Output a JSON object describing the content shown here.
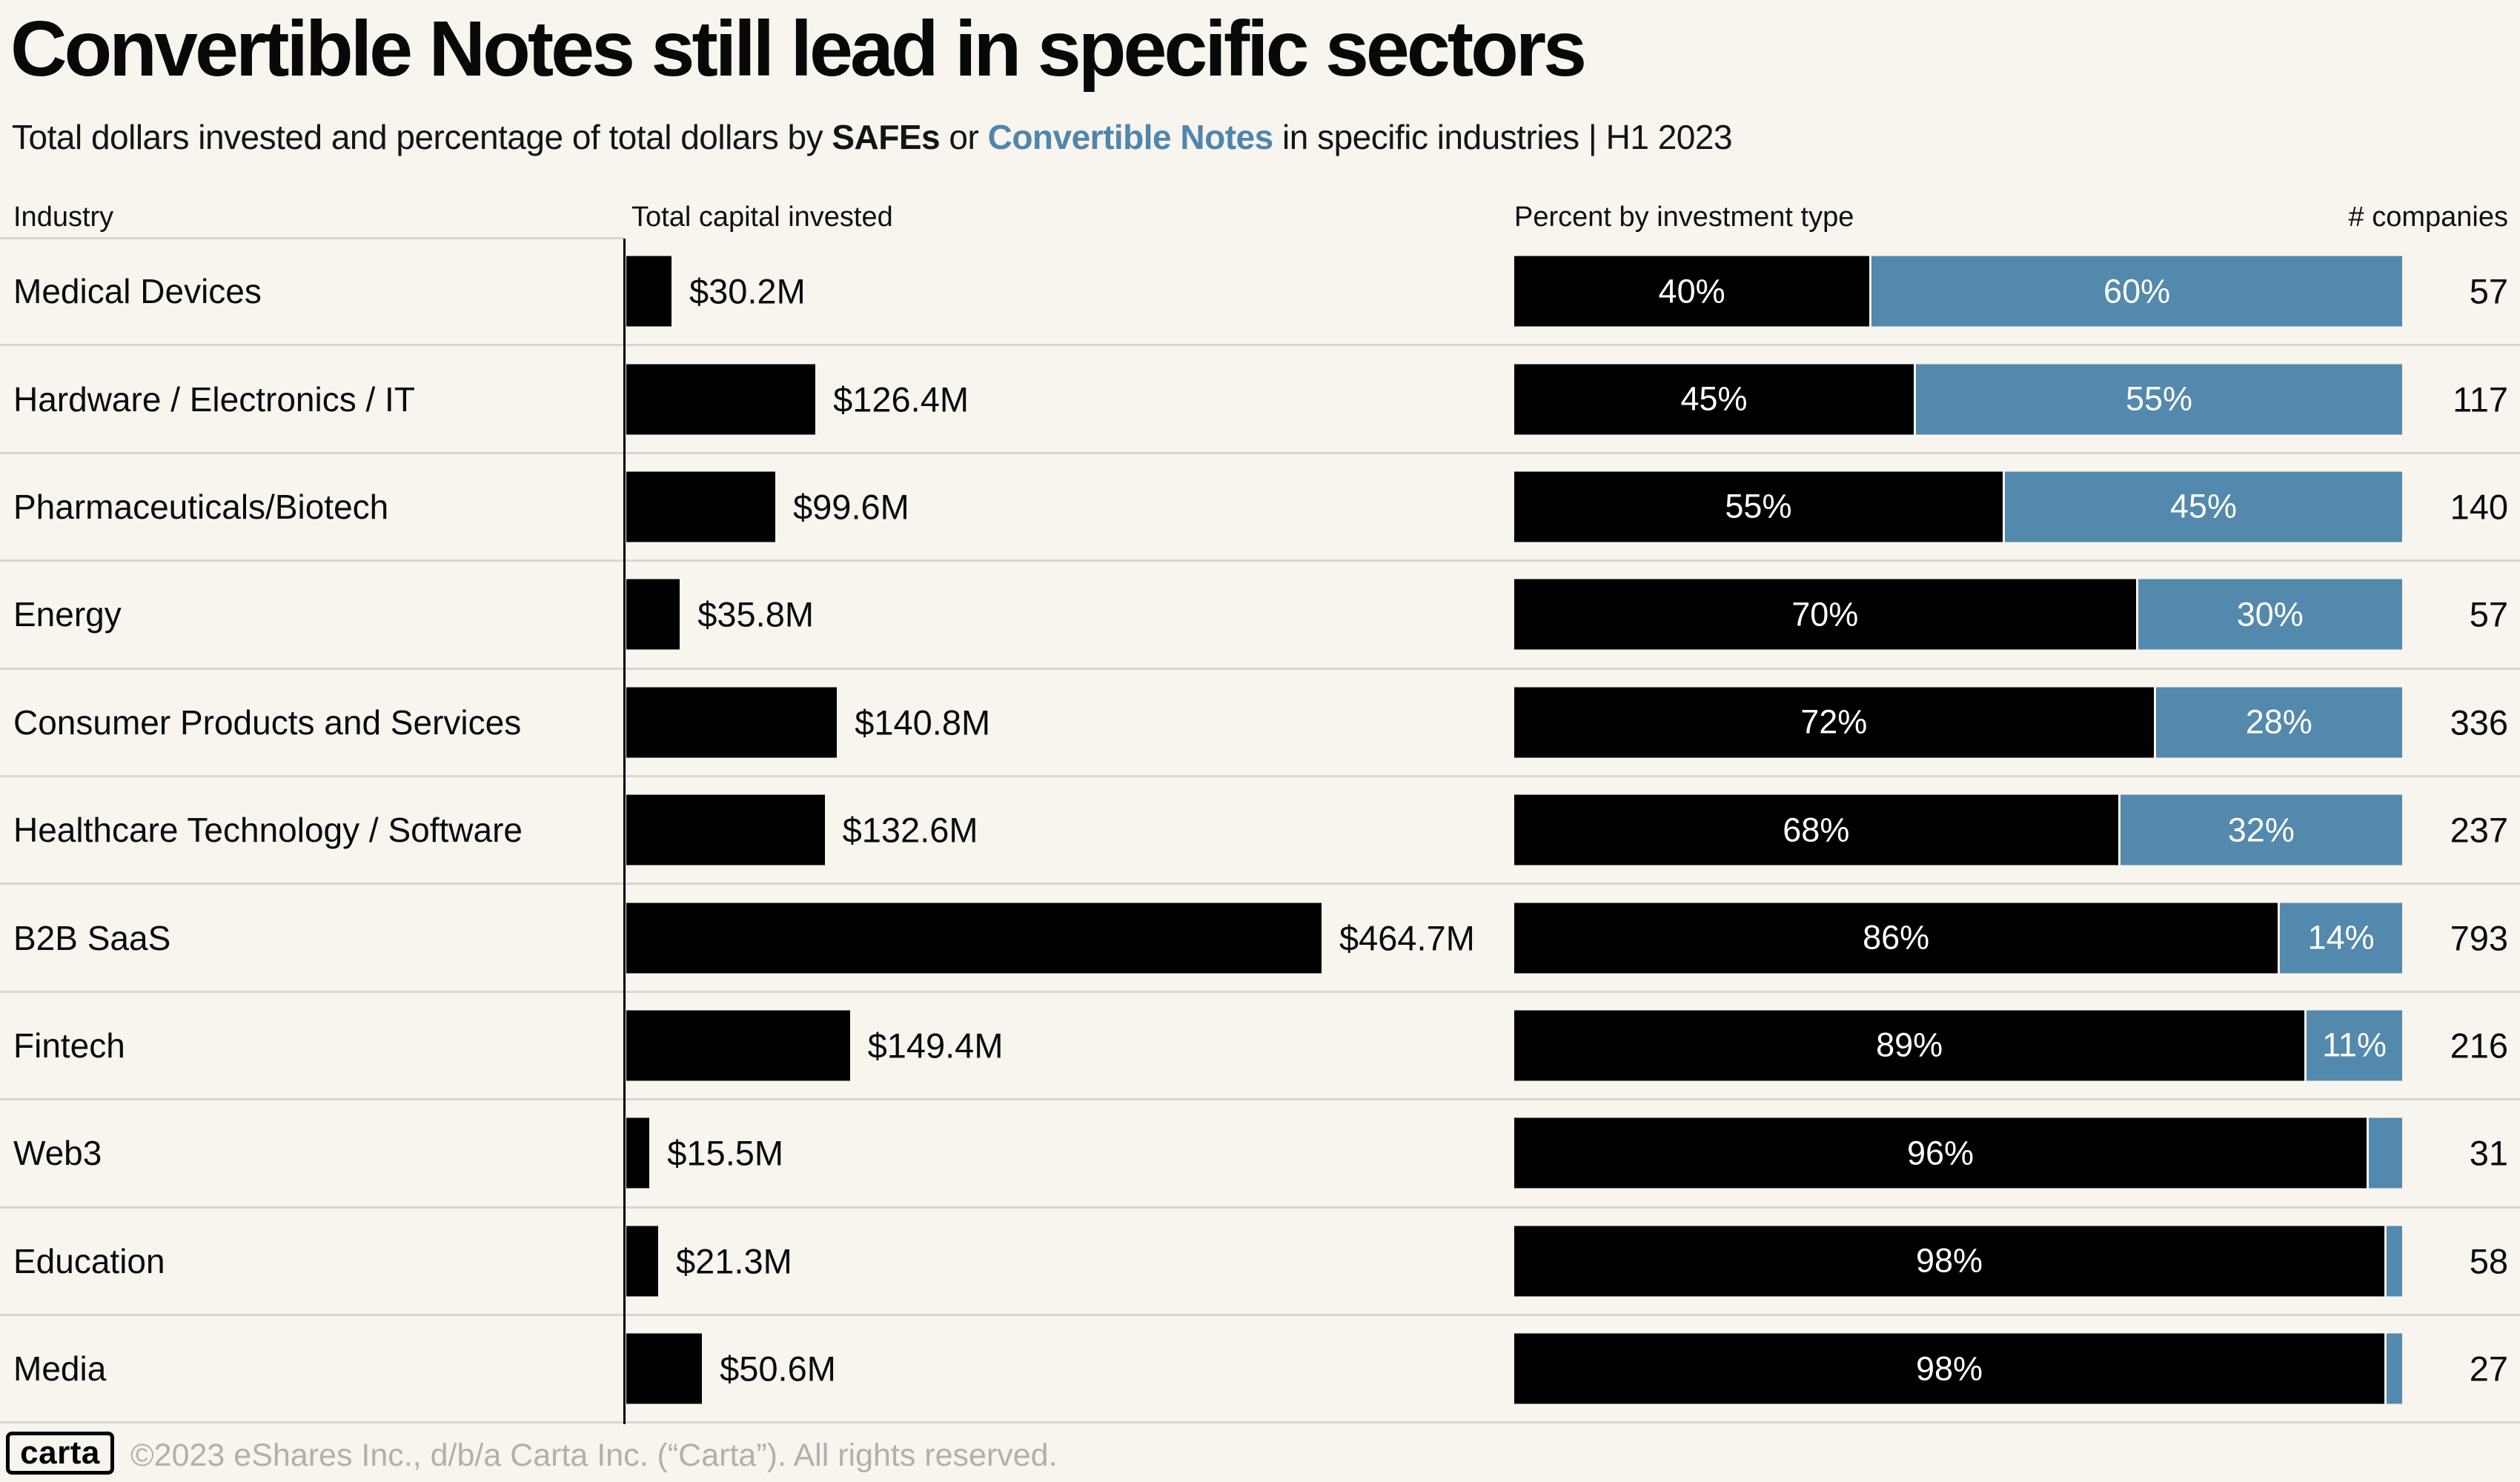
{
  "title": "Convertible Notes still lead in specific sectors",
  "subtitle": {
    "part1": "Total dollars invested and percentage of total dollars by ",
    "safes": "SAFEs",
    "part2": " or ",
    "convertible_notes": "Convertible Notes",
    "part3": " in specific industries | H1 2023"
  },
  "columns": {
    "industry": "Industry",
    "capital": "Total capital invested",
    "percent": "Percent by investment type",
    "companies": "# companies"
  },
  "chart_data": {
    "type": "bar",
    "orientation": "horizontal",
    "title": "Convertible Notes still lead in specific sectors",
    "subtitle": "Total dollars invested and percentage of total dollars by SAFEs or Convertible Notes in specific industries | H1 2023",
    "legend": [
      "SAFEs (black)",
      "Convertible Notes (blue)"
    ],
    "capital_axis_max_m": 464.7,
    "categories": [
      "Medical Devices",
      "Hardware / Electronics / IT",
      "Pharmaceuticals/Biotech",
      "Energy",
      "Consumer Products and Services",
      "Healthcare Technology / Software",
      "B2B SaaS",
      "Fintech",
      "Web3",
      "Education",
      "Media"
    ],
    "series": [
      {
        "name": "Total capital invested ($M)",
        "values": [
          30.2,
          126.4,
          99.6,
          35.8,
          140.8,
          132.6,
          464.7,
          149.4,
          15.5,
          21.3,
          50.6
        ]
      },
      {
        "name": "SAFEs (% of dollars)",
        "values": [
          40,
          45,
          55,
          70,
          72,
          68,
          86,
          89,
          96,
          98,
          98
        ]
      },
      {
        "name": "Convertible Notes (% of dollars)",
        "values": [
          60,
          55,
          45,
          30,
          28,
          32,
          14,
          11,
          4,
          2,
          2
        ]
      },
      {
        "name": "# companies",
        "values": [
          57,
          117,
          140,
          57,
          336,
          237,
          793,
          216,
          31,
          58,
          27
        ]
      }
    ],
    "rows": [
      {
        "industry": "Medical Devices",
        "capital_m": 30.2,
        "capital_label": "$30.2M",
        "safe_pct": 40,
        "cn_pct": 60,
        "safe_label": "40%",
        "cn_label": "60%",
        "companies": "57"
      },
      {
        "industry": "Hardware / Electronics / IT",
        "capital_m": 126.4,
        "capital_label": "$126.4M",
        "safe_pct": 45,
        "cn_pct": 55,
        "safe_label": "45%",
        "cn_label": "55%",
        "companies": "117"
      },
      {
        "industry": "Pharmaceuticals/Biotech",
        "capital_m": 99.6,
        "capital_label": "$99.6M",
        "safe_pct": 55,
        "cn_pct": 45,
        "safe_label": "55%",
        "cn_label": "45%",
        "companies": "140"
      },
      {
        "industry": "Energy",
        "capital_m": 35.8,
        "capital_label": "$35.8M",
        "safe_pct": 70,
        "cn_pct": 30,
        "safe_label": "70%",
        "cn_label": "30%",
        "companies": "57"
      },
      {
        "industry": "Consumer Products and Services",
        "capital_m": 140.8,
        "capital_label": "$140.8M",
        "safe_pct": 72,
        "cn_pct": 28,
        "safe_label": "72%",
        "cn_label": "28%",
        "companies": "336"
      },
      {
        "industry": "Healthcare Technology / Software",
        "capital_m": 132.6,
        "capital_label": "$132.6M",
        "safe_pct": 68,
        "cn_pct": 32,
        "safe_label": "68%",
        "cn_label": "32%",
        "companies": "237"
      },
      {
        "industry": "B2B SaaS",
        "capital_m": 464.7,
        "capital_label": "$464.7M",
        "safe_pct": 86,
        "cn_pct": 14,
        "safe_label": "86%",
        "cn_label": "14%",
        "companies": "793"
      },
      {
        "industry": "Fintech",
        "capital_m": 149.4,
        "capital_label": "$149.4M",
        "safe_pct": 89,
        "cn_pct": 11,
        "safe_label": "89%",
        "cn_label": "11%",
        "companies": "216"
      },
      {
        "industry": "Web3",
        "capital_m": 15.5,
        "capital_label": "$15.5M",
        "safe_pct": 96,
        "cn_pct": 4,
        "safe_label": "96%",
        "cn_label": "",
        "companies": "31"
      },
      {
        "industry": "Education",
        "capital_m": 21.3,
        "capital_label": "$21.3M",
        "safe_pct": 98,
        "cn_pct": 2,
        "safe_label": "98%",
        "cn_label": "",
        "companies": "58"
      },
      {
        "industry": "Media",
        "capital_m": 50.6,
        "capital_label": "$50.6M",
        "safe_pct": 98,
        "cn_pct": 2,
        "safe_label": "98%",
        "cn_label": "",
        "companies": "27"
      }
    ]
  },
  "footer": {
    "logo": "carta",
    "copyright": "©2023 eShares Inc., d/b/a Carta Inc. (“Carta”). All rights reserved."
  },
  "colors": {
    "background": "#f8f4ee",
    "bar_black": "#000000",
    "bar_blue": "#5389ad",
    "text_blue": "#4f86ad",
    "separator": "#d9d6d1",
    "footer_text": "#b3b0ac"
  }
}
